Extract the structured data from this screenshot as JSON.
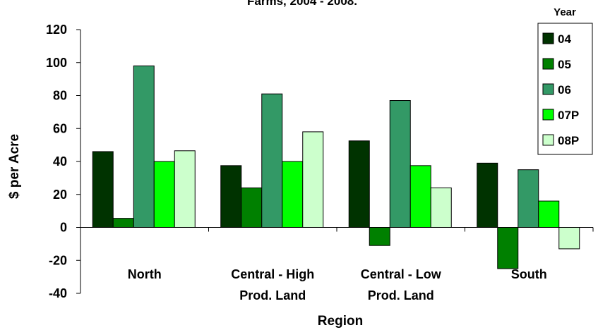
{
  "chart_data": {
    "type": "bar",
    "title": "Farms, 2004 - 2008.",
    "xlabel": "Region",
    "ylabel": "$ per Acre",
    "ylim": [
      -40,
      120
    ],
    "yticks": [
      -40,
      -20,
      0,
      20,
      40,
      60,
      80,
      100,
      120
    ],
    "grid": false,
    "legend_title": "Year",
    "legend_position": "top-right",
    "categories": [
      [
        "North"
      ],
      [
        "Central - High",
        "Prod. Land"
      ],
      [
        "Central - Low",
        "Prod. Land"
      ],
      [
        "South"
      ]
    ],
    "series": [
      {
        "name": "04",
        "color": "#003300",
        "values": [
          46,
          37.5,
          52.5,
          39
        ]
      },
      {
        "name": "05",
        "color": "#008000",
        "values": [
          5.5,
          24,
          -11,
          -25
        ]
      },
      {
        "name": "06",
        "color": "#339966",
        "values": [
          98,
          81,
          77,
          35
        ]
      },
      {
        "name": "07P",
        "color": "#00ff00",
        "values": [
          40,
          40,
          37.5,
          16
        ]
      },
      {
        "name": "08P",
        "color": "#ccffcc",
        "values": [
          46.5,
          58,
          24,
          -13
        ]
      }
    ]
  }
}
